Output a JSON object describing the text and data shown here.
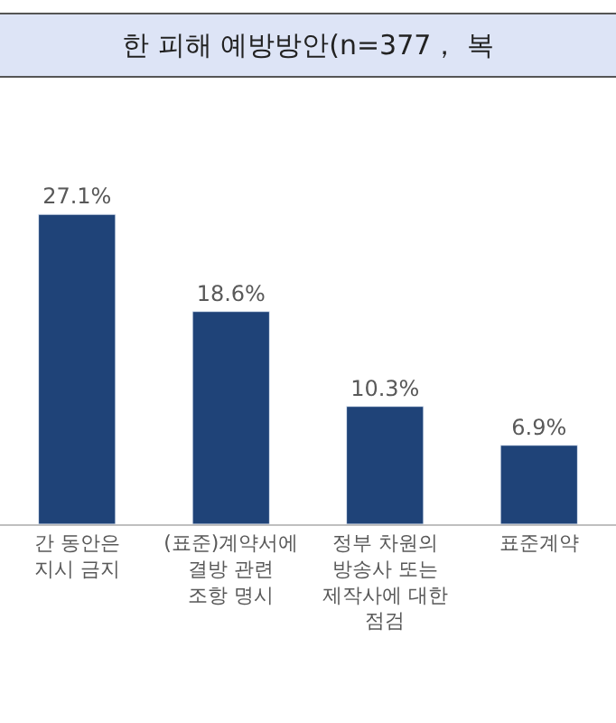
{
  "chart_data": {
    "type": "bar",
    "title": "한 피해 예방방안(n=377， 복",
    "categories": [
      "간 동안은 지시 금지",
      "(표준)계약서에 결방 관련 조항 명시",
      "정부 차원의 방송사 또는 제작사에 대한 점검",
      "표준계약"
    ],
    "values": [
      27.1,
      18.6,
      10.3,
      6.9
    ],
    "color": "#1f4378",
    "value_labels": [
      "27.1%",
      "18.6%",
      "10.3%",
      "6.9%"
    ]
  }
}
